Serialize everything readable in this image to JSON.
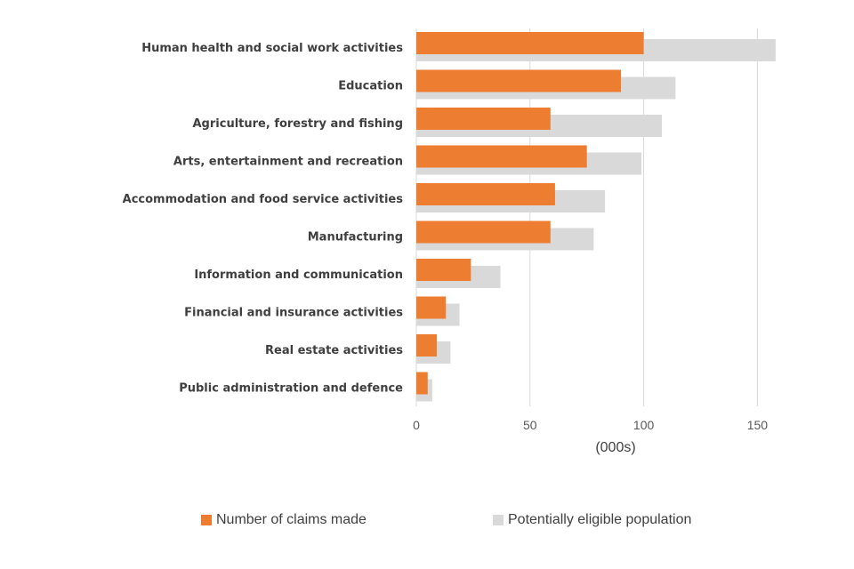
{
  "chart_data": {
    "type": "bar",
    "orientation": "horizontal",
    "categories": [
      "Human health and social work activities",
      "Education",
      "Agriculture, forestry and fishing",
      "Arts, entertainment and recreation",
      "Accommodation and food service activities",
      "Manufacturing",
      "Information and communication",
      "Financial and insurance activities",
      "Real estate activities",
      "Public administration and defence"
    ],
    "series": [
      {
        "name": "Number of claims made",
        "color": "#ED7D31",
        "values": [
          100,
          90,
          59,
          75,
          61,
          59,
          24,
          13,
          9,
          5
        ]
      },
      {
        "name": "Potentially eligible population",
        "color": "#D9D9D9",
        "values": [
          158,
          114,
          108,
          99,
          83,
          78,
          37,
          19,
          15,
          7
        ]
      }
    ],
    "xlabel": "(000s)",
    "xlim": [
      0,
      160
    ],
    "xticks": [
      0,
      50,
      100,
      150
    ],
    "grid": "vertical",
    "legend": "bottom"
  }
}
